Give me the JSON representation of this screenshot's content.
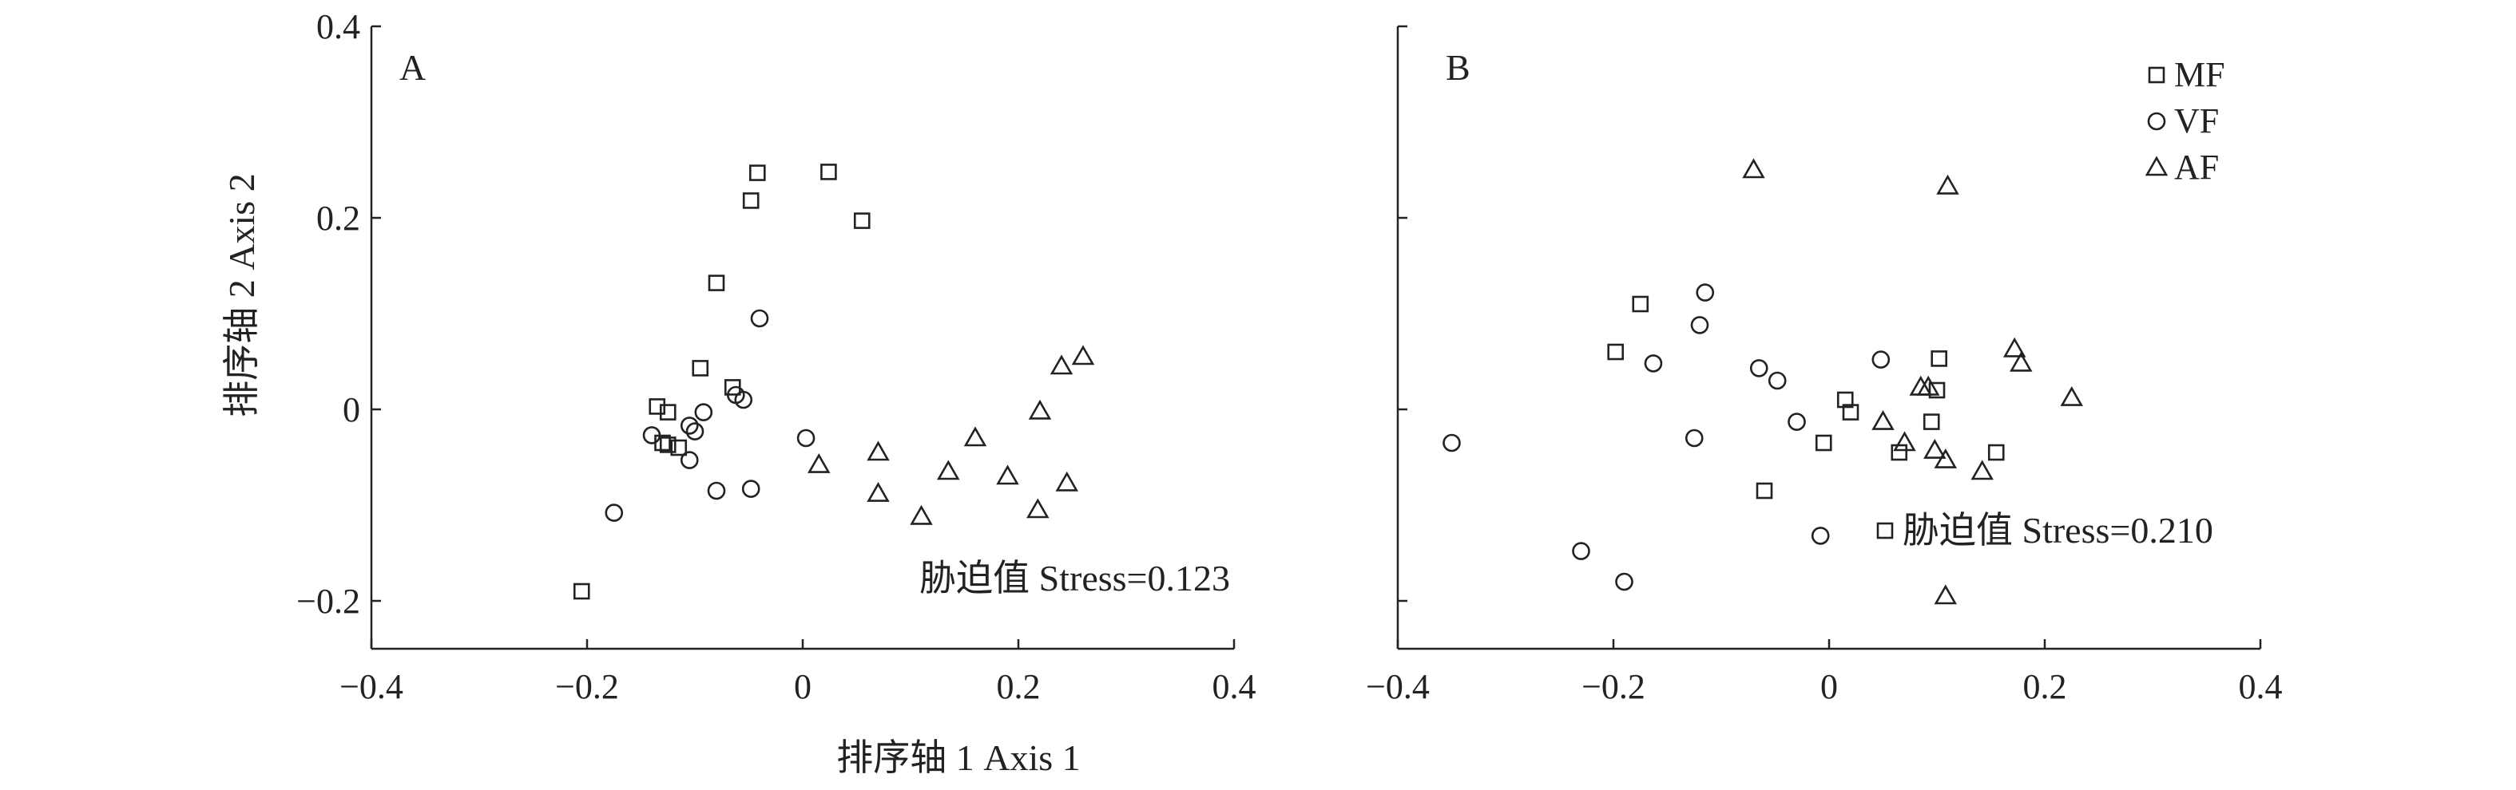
{
  "chart_data": [
    {
      "type": "scatter",
      "panel_label": "A",
      "xlim": [
        -0.4,
        0.4
      ],
      "ylim": [
        -0.25,
        0.4
      ],
      "x_ticks": [
        -0.4,
        -0.2,
        0,
        0.2,
        0.4
      ],
      "y_ticks": [
        -0.2,
        0,
        0.2,
        0.4
      ],
      "x_tick_labels": [
        "−0.4",
        "−0.2",
        "0",
        "0.2",
        "0.4"
      ],
      "y_tick_labels": [
        "−0.2",
        "0",
        "0.2",
        "0.4"
      ],
      "annotation": "胁迫值 Stress=0.123",
      "series": [
        {
          "name": "MF",
          "marker": "square",
          "points": [
            [
              -0.205,
              -0.19
            ],
            [
              -0.135,
              0.003
            ],
            [
              -0.125,
              -0.003
            ],
            [
              -0.13,
              -0.035
            ],
            [
              -0.125,
              -0.037
            ],
            [
              -0.115,
              -0.04
            ],
            [
              -0.095,
              0.043
            ],
            [
              -0.08,
              0.132
            ],
            [
              -0.065,
              0.023
            ],
            [
              -0.048,
              0.218
            ],
            [
              -0.042,
              0.247
            ],
            [
              0.024,
              0.248
            ],
            [
              0.055,
              0.197
            ]
          ]
        },
        {
          "name": "VF",
          "marker": "circle",
          "points": [
            [
              -0.175,
              -0.108
            ],
            [
              -0.14,
              -0.027
            ],
            [
              -0.105,
              -0.017
            ],
            [
              -0.105,
              -0.053
            ],
            [
              -0.1,
              -0.023
            ],
            [
              -0.092,
              -0.003
            ],
            [
              -0.08,
              -0.085
            ],
            [
              -0.062,
              0.015
            ],
            [
              -0.055,
              0.01
            ],
            [
              -0.048,
              -0.083
            ],
            [
              -0.04,
              0.095
            ],
            [
              0.003,
              -0.03
            ]
          ]
        },
        {
          "name": "AF",
          "marker": "triangle",
          "points": [
            [
              0.015,
              -0.058
            ],
            [
              0.07,
              -0.045
            ],
            [
              0.07,
              -0.088
            ],
            [
              0.11,
              -0.112
            ],
            [
              0.135,
              -0.065
            ],
            [
              0.16,
              -0.03
            ],
            [
              0.19,
              -0.07
            ],
            [
              0.218,
              -0.105
            ],
            [
              0.22,
              -0.002
            ],
            [
              0.24,
              0.045
            ],
            [
              0.245,
              -0.077
            ],
            [
              0.26,
              0.055
            ]
          ]
        }
      ]
    },
    {
      "type": "scatter",
      "panel_label": "B",
      "xlim": [
        -0.4,
        0.4
      ],
      "ylim": [
        -0.25,
        0.4
      ],
      "x_ticks": [
        -0.4,
        -0.2,
        0,
        0.2,
        0.4
      ],
      "y_ticks": [
        -0.2,
        0,
        0.2,
        0.4
      ],
      "x_tick_labels": [
        "−0.4",
        "−0.2",
        "0",
        "0.2",
        "0.4"
      ],
      "annotation": "胁迫值 Stress=0.210",
      "annotation_marker": "square",
      "legend": [
        {
          "label": "MF",
          "marker": "square"
        },
        {
          "label": "VF",
          "marker": "circle"
        },
        {
          "label": "AF",
          "marker": "triangle"
        }
      ],
      "legend_position": "top-right",
      "series": [
        {
          "name": "MF",
          "marker": "square",
          "points": [
            [
              -0.198,
              0.06
            ],
            [
              -0.175,
              0.11
            ],
            [
              -0.06,
              -0.085
            ],
            [
              -0.005,
              -0.035
            ],
            [
              0.015,
              0.01
            ],
            [
              0.02,
              -0.003
            ],
            [
              0.065,
              -0.045
            ],
            [
              0.095,
              -0.013
            ],
            [
              0.1,
              0.02
            ],
            [
              0.102,
              0.053
            ],
            [
              0.155,
              -0.045
            ]
          ]
        },
        {
          "name": "VF",
          "marker": "circle",
          "points": [
            [
              -0.35,
              -0.035
            ],
            [
              -0.23,
              -0.148
            ],
            [
              -0.19,
              -0.18
            ],
            [
              -0.163,
              0.048
            ],
            [
              -0.125,
              -0.03
            ],
            [
              -0.12,
              0.088
            ],
            [
              -0.115,
              0.122
            ],
            [
              -0.065,
              0.043
            ],
            [
              -0.048,
              0.03
            ],
            [
              -0.03,
              -0.013
            ],
            [
              -0.008,
              -0.132
            ],
            [
              0.048,
              0.052
            ]
          ]
        },
        {
          "name": "AF",
          "marker": "triangle",
          "points": [
            [
              -0.07,
              0.25
            ],
            [
              0.05,
              -0.013
            ],
            [
              0.07,
              -0.035
            ],
            [
              0.085,
              0.023
            ],
            [
              0.092,
              0.023
            ],
            [
              0.098,
              -0.043
            ],
            [
              0.108,
              -0.053
            ],
            [
              0.108,
              -0.195
            ],
            [
              0.11,
              0.233
            ],
            [
              0.142,
              -0.065
            ],
            [
              0.172,
              0.063
            ],
            [
              0.178,
              0.048
            ],
            [
              0.225,
              0.012
            ]
          ]
        }
      ]
    }
  ],
  "axes": {
    "xlabel": "排序轴 1 Axis 1",
    "ylabel": "排序轴 2 Axis 2"
  }
}
